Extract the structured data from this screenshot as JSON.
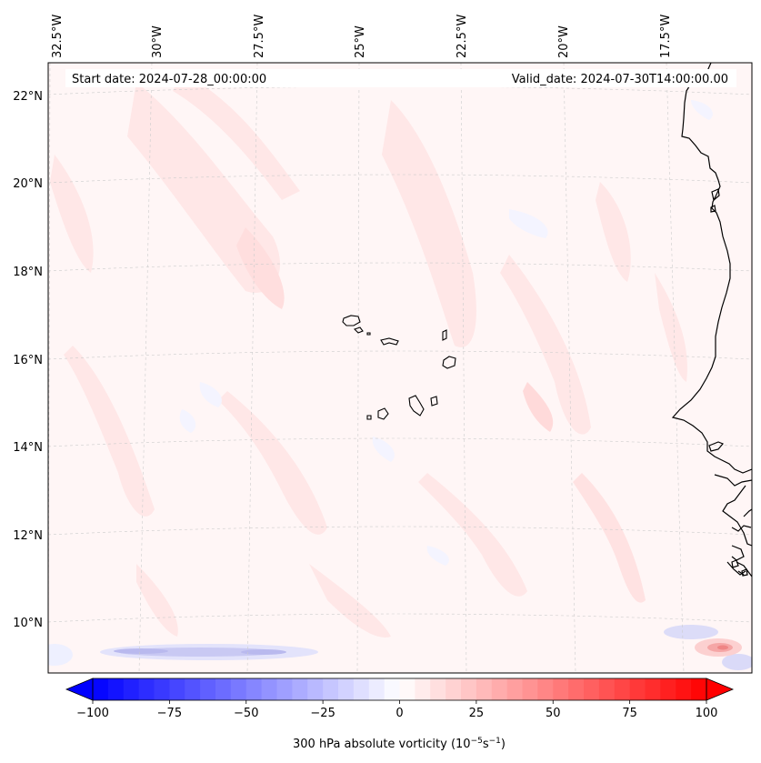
{
  "header": {
    "start_date": "Start date: 2024-07-28_00:00:00",
    "valid_date": "Valid_date: 2024-07-30T14:00:00.00"
  },
  "axes": {
    "lon_labels": [
      "32.5°W",
      "30°W",
      "27.5°W",
      "25°W",
      "22.5°W",
      "20°W",
      "17.5°W"
    ],
    "lat_labels": [
      "22°N",
      "20°N",
      "18°N",
      "16°N",
      "14°N",
      "12°N",
      "10°N"
    ]
  },
  "colorbar": {
    "label_main": "300 hPa absolute vorticity (10",
    "label_exp1": "−5",
    "label_mid": "s",
    "label_exp2": "−1",
    "label_end": ")",
    "tick_labels": [
      "−100",
      "−75",
      "−50",
      "−25",
      "0",
      "25",
      "50",
      "75",
      "100"
    ],
    "colormap": "bwr",
    "range": [
      -100,
      100
    ],
    "extend": "both",
    "min_color": "#0000ff",
    "mid_color": "#ffffff",
    "max_color": "#ff0000"
  },
  "colors": {
    "coastline": "#000000",
    "gridline": "#cccccc",
    "background_vorticity": "#fff6f6"
  }
}
